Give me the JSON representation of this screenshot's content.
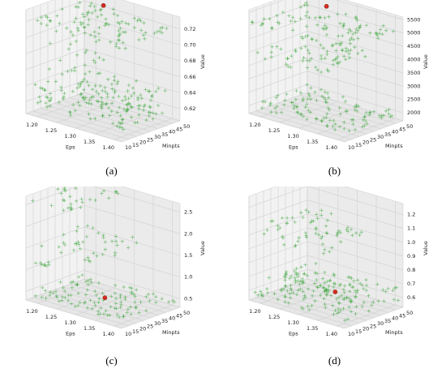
{
  "panels": [
    {
      "caption": "(a)",
      "chart_data": {
        "type": "scatter",
        "title": "",
        "xlabel": "Eps",
        "ylabel": "Minpts",
        "zlabel": "Value",
        "xlim": [
          1.17,
          1.42
        ],
        "ylim": [
          10,
          50
        ],
        "zlim": [
          0.605,
          0.735
        ],
        "xticks": [
          "1.20",
          "1.25",
          "1.30",
          "1.35",
          "1.40"
        ],
        "yticks": [
          "10",
          "15",
          "20",
          "25",
          "30",
          "35",
          "40",
          "45",
          "50"
        ],
        "zticks": [
          "0.62",
          "0.64",
          "0.66",
          "0.68",
          "0.70",
          "0.72"
        ],
        "grid": true,
        "clusters": [
          {
            "x": [
              1.17,
              1.42
            ],
            "y": [
              10,
              50
            ],
            "z": 0.72,
            "points": 90
          },
          {
            "x": [
              1.17,
              1.3
            ],
            "y": [
              10,
              50
            ],
            "z": 0.69,
            "points": 14
          },
          {
            "x": [
              1.2,
              1.27
            ],
            "y": [
              10,
              50
            ],
            "z": 0.668,
            "points": 10
          },
          {
            "x": [
              1.17,
              1.4
            ],
            "y": [
              10,
              50
            ],
            "z": 0.64,
            "points": 60
          },
          {
            "x": [
              1.17,
              1.42
            ],
            "y": [
              10,
              50
            ],
            "z": 0.62,
            "points": 110
          }
        ],
        "optimum": {
          "x": 1.22,
          "y": 50,
          "z": 0.721
        }
      }
    },
    {
      "caption": "(b)",
      "chart_data": {
        "type": "scatter",
        "title": "",
        "xlabel": "Eps",
        "ylabel": "Minpts",
        "zlabel": "Value",
        "xlim": [
          1.17,
          1.42
        ],
        "ylim": [
          10,
          50
        ],
        "zlim": [
          1700,
          5600
        ],
        "xticks": [
          "1.20",
          "1.25",
          "1.30",
          "1.35",
          "1.40"
        ],
        "yticks": [
          "10",
          "15",
          "20",
          "25",
          "30",
          "35",
          "40",
          "45",
          "50"
        ],
        "zticks": [
          "2000",
          "2500",
          "3000",
          "3500",
          "4000",
          "4500",
          "5000",
          "5500"
        ],
        "grid": true,
        "clusters": [
          {
            "x": [
              1.17,
              1.42
            ],
            "y": [
              10,
              50
            ],
            "z": 5100,
            "points": 90
          },
          {
            "x": [
              1.17,
              1.35
            ],
            "y": [
              10,
              50
            ],
            "z": 3900,
            "points": 60
          },
          {
            "x": [
              1.17,
              1.42
            ],
            "y": [
              10,
              50
            ],
            "z": 2000,
            "points": 110
          }
        ],
        "optimum": {
          "x": 1.22,
          "y": 50,
          "z": 5150
        }
      }
    },
    {
      "caption": "(c)",
      "chart_data": {
        "type": "scatter",
        "title": "",
        "xlabel": "Eps",
        "ylabel": "Minpts",
        "zlabel": "Value",
        "xlim": [
          1.17,
          1.42
        ],
        "ylim": [
          10,
          50
        ],
        "zlim": [
          0.3,
          2.7
        ],
        "xticks": [
          "1.20",
          "1.25",
          "1.30",
          "1.35",
          "1.40"
        ],
        "yticks": [
          "10",
          "15",
          "20",
          "25",
          "30",
          "35",
          "40",
          "45",
          "50"
        ],
        "zticks": [
          "0.5",
          "1.0",
          "1.5",
          "2.0",
          "2.5"
        ],
        "grid": true,
        "clusters": [
          {
            "x": [
              1.17,
              1.28
            ],
            "y": [
              10,
              50
            ],
            "z": 2.6,
            "points": 30
          },
          {
            "x": [
              1.17,
              1.35
            ],
            "y": [
              10,
              50
            ],
            "z": 1.6,
            "points": 40
          },
          {
            "x": [
              1.17,
              1.21
            ],
            "y": [
              10,
              20
            ],
            "z": 1.1,
            "points": 8
          },
          {
            "x": [
              1.17,
              1.42
            ],
            "y": [
              10,
              50
            ],
            "z": 0.45,
            "points": 110
          }
        ],
        "optimum": {
          "x": 1.3,
          "y": 30,
          "z": 0.45
        }
      }
    },
    {
      "caption": "(d)",
      "chart_data": {
        "type": "scatter",
        "title": "",
        "xlabel": "Eps",
        "ylabel": "Minpts",
        "zlabel": "Value",
        "xlim": [
          1.17,
          1.42
        ],
        "ylim": [
          10,
          50
        ],
        "zlim": [
          0.53,
          1.28
        ],
        "xticks": [
          "1.20",
          "1.25",
          "1.30",
          "1.35",
          "1.40"
        ],
        "yticks": [
          "10",
          "15",
          "20",
          "25",
          "30",
          "35",
          "40",
          "45",
          "50"
        ],
        "zticks": [
          "0.6",
          "0.7",
          "0.8",
          "0.9",
          "1.0",
          "1.1",
          "1.2"
        ],
        "grid": true,
        "clusters": [
          {
            "x": [
              1.22,
              1.28
            ],
            "y": [
              10,
              50
            ],
            "z": 1.14,
            "points": 14
          },
          {
            "x": [
              1.17,
              1.35
            ],
            "y": [
              10,
              50
            ],
            "z": 1.0,
            "points": 50
          },
          {
            "x": [
              1.17,
              1.42
            ],
            "y": [
              10,
              50
            ],
            "z": 0.66,
            "points": 90
          },
          {
            "x": [
              1.17,
              1.42
            ],
            "y": [
              10,
              50
            ],
            "z": 0.58,
            "points": 90
          }
        ],
        "optimum": {
          "x": 1.3,
          "y": 35,
          "z": 0.6
        }
      }
    }
  ],
  "colors": {
    "point": "#2ca02c",
    "optimum": "#d62728",
    "pane": "#f2f2f2",
    "grid": "#d0d0d0"
  }
}
